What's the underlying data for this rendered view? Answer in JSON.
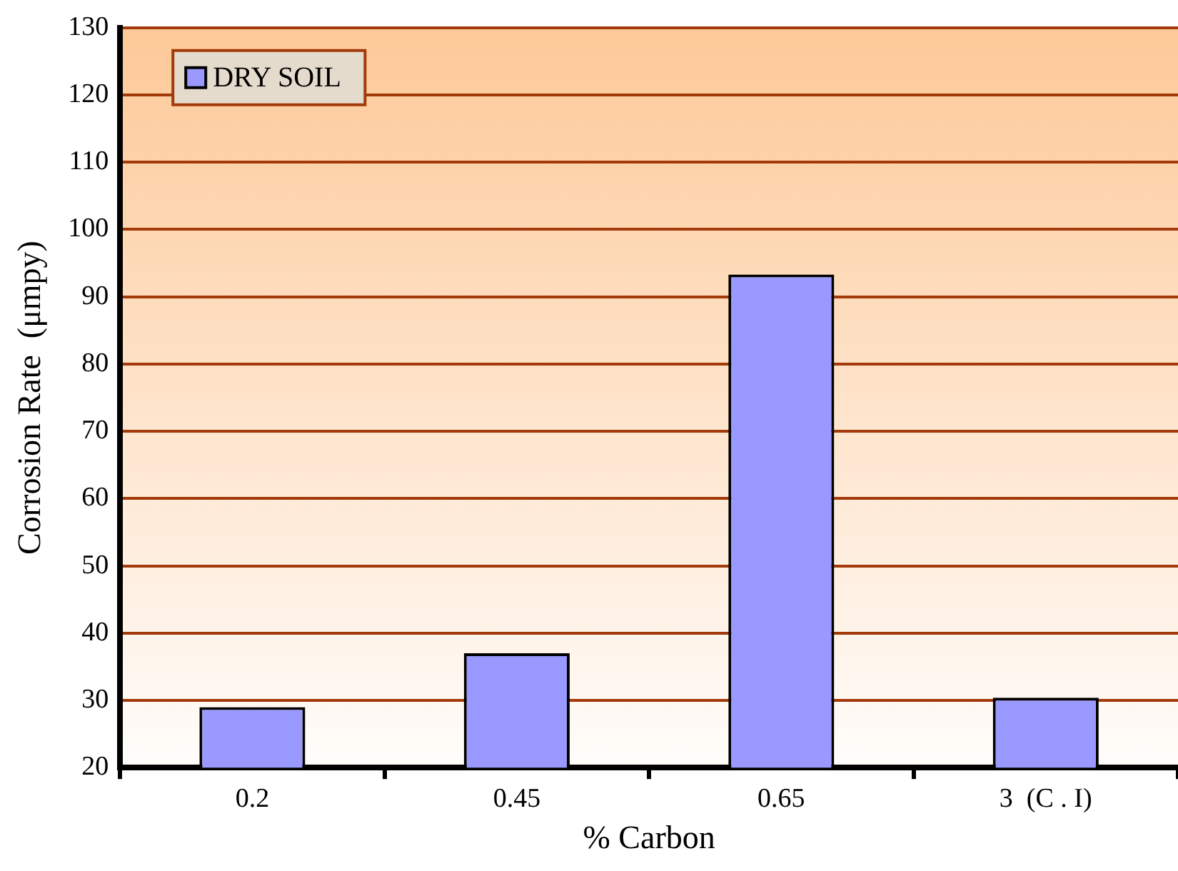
{
  "chart_data": {
    "type": "bar",
    "xlabel": "% Carbon",
    "ylabel": "Corrosion Rate  (μmpy)",
    "categories": [
      "0.2",
      "0.45",
      "0.65",
      "3  (C . I)"
    ],
    "series": [
      {
        "name": "DRY SOIL",
        "color": "#9999ff",
        "values": [
          29,
          37,
          93.3,
          30.4
        ]
      }
    ],
    "ylim": [
      20,
      130
    ],
    "yticks": [
      20,
      30,
      40,
      50,
      60,
      70,
      80,
      90,
      100,
      110,
      120,
      130
    ],
    "grid": "y",
    "legend": "top left"
  }
}
